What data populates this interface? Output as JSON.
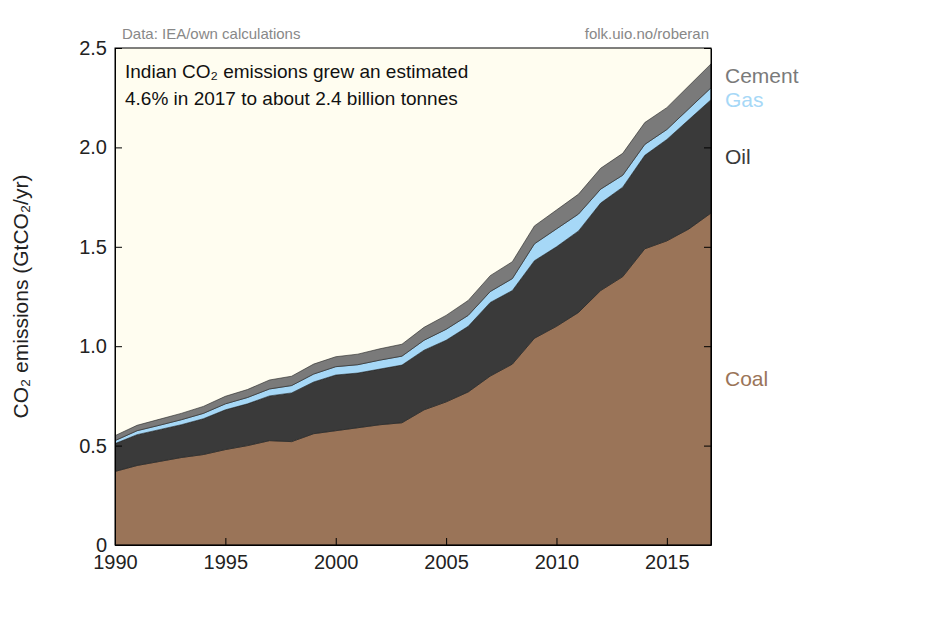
{
  "chart_data": {
    "type": "area",
    "stacked": true,
    "source": "Data: IEA/own calculations",
    "credit": "folk.uio.no/roberan",
    "annotation": [
      "Indian CO₂ emissions grew an estimated",
      "4.6% in 2017 to about 2.4 billion tonnes"
    ],
    "y_label": "CO₂ emissions (GtCO₂/yr)",
    "x": [
      1990,
      1991,
      1992,
      1993,
      1994,
      1995,
      1996,
      1997,
      1998,
      1999,
      2000,
      2001,
      2002,
      2003,
      2004,
      2005,
      2006,
      2007,
      2008,
      2009,
      2010,
      2011,
      2012,
      2013,
      2014,
      2015,
      2016,
      2017
    ],
    "xlim": [
      1990,
      2017
    ],
    "xticks": [
      1990,
      1995,
      2000,
      2005,
      2010,
      2015
    ],
    "ylim": [
      0,
      2.5
    ],
    "yticks": [
      0,
      0.5,
      {
        "value": 1,
        "label": "1.0"
      },
      1.5,
      {
        "value": 2,
        "label": "2.0"
      },
      2.5
    ],
    "series": [
      {
        "name": "Coal",
        "color": "#9a7458",
        "values": [
          0.37,
          0.4,
          0.42,
          0.44,
          0.455,
          0.48,
          0.5,
          0.525,
          0.52,
          0.56,
          0.575,
          0.59,
          0.605,
          0.615,
          0.68,
          0.72,
          0.77,
          0.85,
          0.91,
          1.04,
          1.1,
          1.17,
          1.28,
          1.35,
          1.49,
          1.53,
          1.59,
          1.67
        ]
      },
      {
        "name": "Oil",
        "color": "#3a3a3a",
        "values": [
          0.14,
          0.155,
          0.16,
          0.165,
          0.18,
          0.2,
          0.21,
          0.225,
          0.245,
          0.26,
          0.28,
          0.275,
          0.28,
          0.29,
          0.3,
          0.31,
          0.33,
          0.37,
          0.37,
          0.39,
          0.4,
          0.41,
          0.44,
          0.45,
          0.47,
          0.51,
          0.55,
          0.57
        ]
      },
      {
        "name": "Gas",
        "color": "#a6d8f7",
        "values": [
          0.015,
          0.02,
          0.022,
          0.025,
          0.027,
          0.03,
          0.032,
          0.035,
          0.037,
          0.04,
          0.042,
          0.042,
          0.045,
          0.045,
          0.05,
          0.055,
          0.055,
          0.055,
          0.06,
          0.085,
          0.09,
          0.085,
          0.07,
          0.06,
          0.055,
          0.05,
          0.055,
          0.06
        ]
      },
      {
        "name": "Cement",
        "color": "#7a7a7a",
        "values": [
          0.025,
          0.027,
          0.03,
          0.032,
          0.035,
          0.038,
          0.04,
          0.045,
          0.047,
          0.05,
          0.05,
          0.053,
          0.057,
          0.06,
          0.065,
          0.07,
          0.075,
          0.08,
          0.085,
          0.09,
          0.095,
          0.1,
          0.105,
          0.11,
          0.11,
          0.11,
          0.115,
          0.12
        ]
      }
    ]
  }
}
